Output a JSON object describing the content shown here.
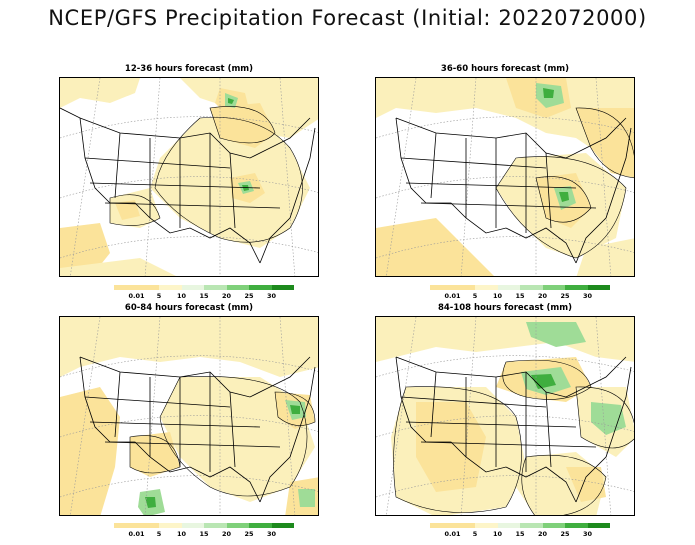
{
  "title": "NCEP/GFS Precipitation Forecast (Initial: 2022072000)",
  "panels": [
    {
      "title": "12-36 hours forecast (mm)"
    },
    {
      "title": "36-60 hours forecast (mm)"
    },
    {
      "title": "60-84 hours forecast (mm)"
    },
    {
      "title": "84-108 hours forecast (mm)"
    }
  ],
  "colorbar": {
    "labels": [
      "0.01",
      "5",
      "10",
      "15",
      "20",
      "25",
      "30"
    ],
    "colors": [
      "#fbe39a",
      "#fbe39a",
      "#fdf5c9",
      "#e8f6e0",
      "#b9e6b3",
      "#7fd07a",
      "#3fae3f",
      "#1d8a1d"
    ]
  },
  "map_colors": {
    "light_precip": "#fbf0bb",
    "moderate_precip": "#fbe39a",
    "heavy_precip": "#9fdc97",
    "very_heavy_precip": "#3fae3f",
    "boundaries": "#000000",
    "graticule": "#9a9a9a"
  }
}
